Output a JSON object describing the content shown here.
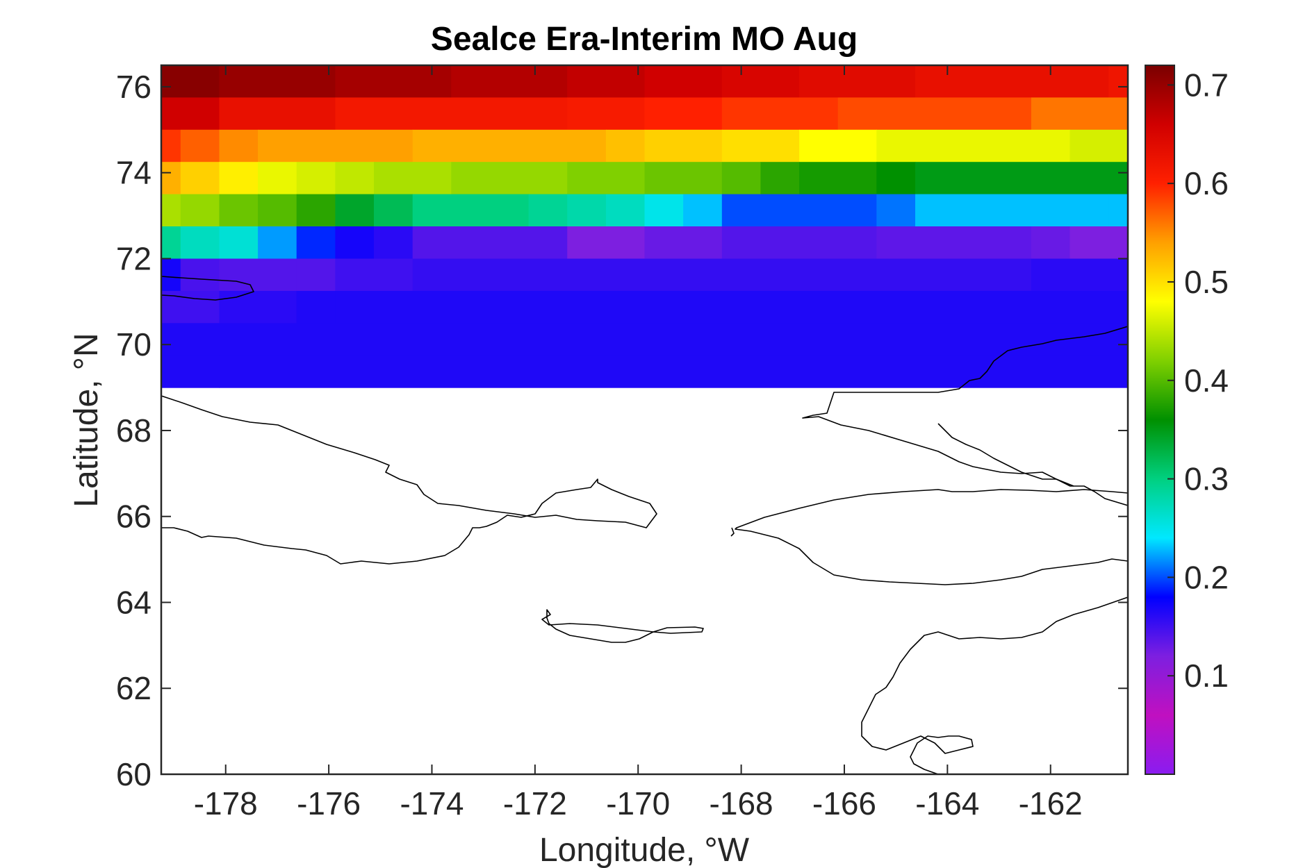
{
  "chart_data": {
    "type": "heatmap",
    "title": "Sealce Era-Interim MO Aug",
    "xlabel": "Longitude, °W",
    "ylabel": "Latitude, °N",
    "xlim": [
      -179.25,
      -160.5
    ],
    "ylim": [
      60,
      76.5
    ],
    "xticks": [
      -178,
      -176,
      -174,
      -172,
      -170,
      -168,
      -166,
      -164,
      -162
    ],
    "yticks": [
      60,
      62,
      64,
      66,
      68,
      70,
      72,
      74,
      76
    ],
    "colorbar": {
      "ticks": [
        0.1,
        0.2,
        0.3,
        0.4,
        0.5,
        0.6,
        0.7
      ],
      "range": [
        0,
        0.72
      ],
      "colormap": "rainbow",
      "stops": [
        "#8a1cf0",
        "#c010c0",
        "#7d1fe0",
        "#0000ff",
        "#00e8ff",
        "#00d080",
        "#009000",
        "#80d000",
        "#ffff00",
        "#ffa000",
        "#ff2000",
        "#d00000",
        "#7a0000"
      ]
    },
    "cells": [
      {
        "lat": 76.125,
        "lons": [
          -179.25,
          -178.125,
          -175.875,
          -173.625,
          -171.375,
          -169.875,
          -168.375,
          -166.875,
          -164.625,
          -162.375,
          -160.875
        ],
        "values": [
          0.71,
          0.7,
          0.69,
          0.68,
          0.67,
          0.66,
          0.65,
          0.64,
          0.63,
          0.63,
          0.62
        ]
      },
      {
        "lat": 75.375,
        "lons": [
          -179.25,
          -178.125,
          -175.875,
          -171.375,
          -169.875,
          -168.375,
          -166.125,
          -162.375,
          -160.5
        ],
        "values": [
          0.66,
          0.63,
          0.615,
          0.61,
          0.6,
          0.59,
          0.58,
          0.56,
          0.56
        ]
      },
      {
        "lat": 74.625,
        "lons": [
          -179.25,
          -178.875,
          -178.125,
          -177.375,
          -174.375,
          -170.625,
          -169.875,
          -168.375,
          -166.875,
          -165.375,
          -161.625,
          -160.5
        ],
        "values": [
          0.59,
          0.57,
          0.55,
          0.54,
          0.53,
          0.52,
          0.51,
          0.5,
          0.48,
          0.47,
          0.46,
          0.46
        ]
      },
      {
        "lat": 73.875,
        "lons": [
          -179.25,
          -178.875,
          -178.125,
          -177.375,
          -176.625,
          -175.875,
          -175.125,
          -173.625,
          -171.375,
          -169.875,
          -168.375,
          -167.625,
          -166.875,
          -165.375,
          -164.625,
          -160.5
        ],
        "values": [
          0.53,
          0.51,
          0.49,
          0.47,
          0.46,
          0.45,
          0.44,
          0.43,
          0.42,
          0.41,
          0.4,
          0.38,
          0.37,
          0.36,
          0.35,
          0.35
        ]
      },
      {
        "lat": 73.125,
        "lons": [
          -179.25,
          -178.875,
          -178.125,
          -177.375,
          -176.625,
          -175.875,
          -175.125,
          -174.375,
          -172.125,
          -171.375,
          -170.625,
          -169.875,
          -169.125,
          -168.375,
          -165.375,
          -164.625,
          -160.875,
          -160.5
        ],
        "values": [
          0.44,
          0.43,
          0.41,
          0.4,
          0.38,
          0.34,
          0.32,
          0.3,
          0.29,
          0.28,
          0.27,
          0.25,
          0.23,
          0.2,
          0.21,
          0.23,
          0.23,
          0.24
        ]
      },
      {
        "lat": 72.375,
        "lons": [
          -179.25,
          -178.875,
          -178.125,
          -177.375,
          -176.625,
          -175.875,
          -175.125,
          -174.375,
          -171.375,
          -169.875,
          -168.375,
          -165.375,
          -162.375,
          -161.625,
          -160.5
        ],
        "values": [
          0.29,
          0.27,
          0.26,
          0.22,
          0.19,
          0.17,
          0.16,
          0.14,
          0.12,
          0.13,
          0.14,
          0.135,
          0.13,
          0.12,
          0.13
        ]
      },
      {
        "lat": 71.625,
        "lons": [
          -179.25,
          -178.875,
          -178.125,
          -176.625,
          -175.875,
          -175.125,
          -174.375,
          -162.375,
          -160.5
        ],
        "values": [
          0.17,
          0.145,
          0.14,
          0.14,
          0.15,
          0.15,
          0.155,
          0.16,
          0.155
        ]
      },
      {
        "lat": 70.875,
        "lons": [
          -179.25,
          -178.125,
          -176.625,
          -175.875
        ],
        "values": [
          0.15,
          0.16,
          0.165,
          0.165
        ]
      },
      {
        "lat": 70.125,
        "lons": [
          -179.25,
          -178.125
        ],
        "values": [
          0.165,
          0.165
        ]
      },
      {
        "lat": 69.375,
        "lons": [
          -179.25,
          -178.125
        ],
        "values": [
          0.165,
          0.165
        ]
      }
    ]
  }
}
